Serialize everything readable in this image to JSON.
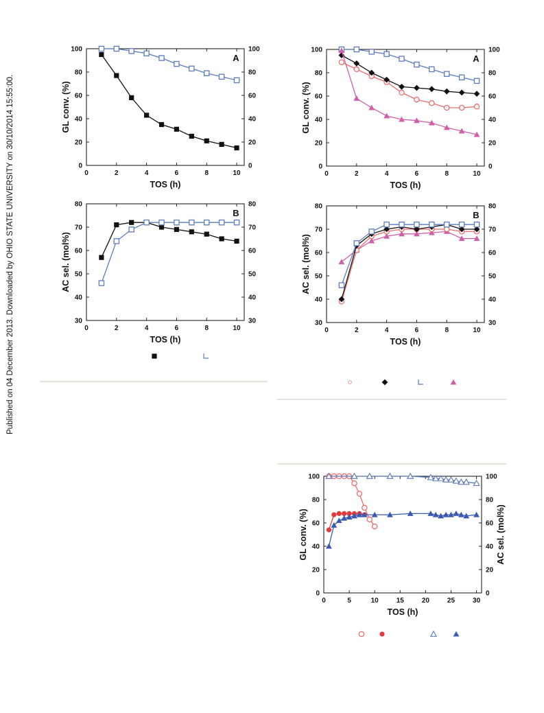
{
  "watermark": "Published on 04 December 2013. Downloaded by OHIO STATE UNIVERSITY on 30/10/2014 15:55:00.",
  "chart_data": [
    {
      "id": "fig-left-a",
      "type": "line",
      "panel_label": "A",
      "xlabel": "TOS (h)",
      "ylabel": "GL conv. (%)",
      "y2label": "",
      "xlim": [
        0,
        10.5
      ],
      "ylim": [
        0,
        100
      ],
      "y2lim": [
        0,
        100
      ],
      "xticks": [
        0,
        2,
        4,
        6,
        8,
        10
      ],
      "yticks": [
        0,
        20,
        40,
        60,
        80,
        100
      ],
      "y2ticks": [
        0,
        20,
        40,
        60,
        80,
        100
      ],
      "series": [
        {
          "axis": "left",
          "color": "#111111",
          "marker": "square-filled",
          "x": [
            1,
            2,
            3,
            4,
            5,
            6,
            7,
            8,
            9,
            10
          ],
          "y": [
            95,
            77,
            58,
            43,
            35,
            31,
            25,
            21,
            18,
            15
          ]
        },
        {
          "axis": "left",
          "color": "#5b7bbf",
          "marker": "square-open",
          "x": [
            1,
            2,
            3,
            4,
            5,
            6,
            7,
            8,
            9,
            10
          ],
          "y": [
            100,
            100,
            98,
            96,
            92,
            87,
            83,
            79,
            76,
            73
          ]
        }
      ]
    },
    {
      "id": "fig-left-b",
      "type": "line",
      "panel_label": "B",
      "xlabel": "TOS (h)",
      "ylabel": "AC sel. (mol%)",
      "y2label": "",
      "xlim": [
        0,
        10.5
      ],
      "ylim": [
        30,
        80
      ],
      "y2lim": [
        30,
        80
      ],
      "xticks": [
        0,
        2,
        4,
        6,
        8,
        10
      ],
      "yticks": [
        30,
        40,
        50,
        60,
        70,
        80
      ],
      "y2ticks": [
        30,
        40,
        50,
        60,
        70,
        80
      ],
      "series": [
        {
          "axis": "left",
          "color": "#111111",
          "marker": "square-filled",
          "x": [
            1,
            2,
            3,
            4,
            5,
            6,
            7,
            8,
            9,
            10
          ],
          "y": [
            57,
            71,
            72,
            72,
            70,
            69,
            68,
            67,
            65,
            64
          ]
        },
        {
          "axis": "left",
          "color": "#5b7bbf",
          "marker": "square-open",
          "x": [
            1,
            2,
            3,
            4,
            5,
            6,
            7,
            8,
            9,
            10
          ],
          "y": [
            46,
            64,
            69,
            72,
            72,
            72,
            72,
            72,
            72,
            72
          ]
        }
      ]
    },
    {
      "id": "fig-right-a",
      "type": "line",
      "panel_label": "A",
      "xlabel": "TOS (h)",
      "ylabel": "GL conv. (%)",
      "y2label": "",
      "xlim": [
        0,
        10.5
      ],
      "ylim": [
        0,
        100
      ],
      "y2lim": [
        0,
        100
      ],
      "xticks": [
        0,
        2,
        4,
        6,
        8,
        10
      ],
      "yticks": [
        0,
        20,
        40,
        60,
        80,
        100
      ],
      "y2ticks": [
        0,
        20,
        40,
        60,
        80,
        100
      ],
      "series": [
        {
          "axis": "left",
          "color": "#ee6b6b",
          "marker": "circle-open",
          "x": [
            1,
            2,
            3,
            4,
            5,
            6,
            7,
            8,
            9,
            10
          ],
          "y": [
            89,
            83,
            77,
            72,
            63,
            57,
            54,
            50,
            50,
            51
          ]
        },
        {
          "axis": "left",
          "color": "#111111",
          "marker": "diamond-filled",
          "x": [
            1,
            2,
            3,
            4,
            5,
            6,
            7,
            8,
            9,
            10
          ],
          "y": [
            95,
            88,
            80,
            74,
            68,
            67,
            66,
            64,
            63,
            62
          ]
        },
        {
          "axis": "left",
          "color": "#5b7bbf",
          "marker": "square-open",
          "x": [
            1,
            2,
            3,
            4,
            5,
            6,
            7,
            8,
            9,
            10
          ],
          "y": [
            100,
            100,
            98,
            96,
            92,
            87,
            83,
            79,
            76,
            73
          ]
        },
        {
          "axis": "left",
          "color": "#cf5fa8",
          "marker": "triangle-filled",
          "x": [
            1,
            2,
            3,
            4,
            5,
            6,
            7,
            8,
            9,
            10
          ],
          "y": [
            99,
            58,
            50,
            43,
            40,
            39,
            37,
            33,
            30,
            27
          ]
        }
      ]
    },
    {
      "id": "fig-right-b",
      "type": "line",
      "panel_label": "B",
      "xlabel": "TOS (h)",
      "ylabel": "AC sel. (mol%)",
      "y2label": "",
      "xlim": [
        0,
        10.5
      ],
      "ylim": [
        30,
        80
      ],
      "y2lim": [
        30,
        80
      ],
      "xticks": [
        0,
        2,
        4,
        6,
        8,
        10
      ],
      "yticks": [
        30,
        40,
        50,
        60,
        70,
        80
      ],
      "y2ticks": [
        30,
        40,
        50,
        60,
        70,
        80
      ],
      "series": [
        {
          "axis": "left",
          "color": "#cf5fa8",
          "marker": "triangle-filled",
          "x": [
            1,
            2,
            3,
            4,
            5,
            6,
            7,
            8,
            9,
            10
          ],
          "y": [
            56,
            61,
            65,
            67,
            68,
            68,
            68.5,
            69,
            66,
            66
          ]
        },
        {
          "axis": "left",
          "color": "#ee6b6b",
          "marker": "circle-open",
          "x": [
            1,
            2,
            3,
            4,
            5,
            6,
            7,
            8,
            9,
            10
          ],
          "y": [
            39,
            61,
            67,
            69,
            70,
            70,
            70,
            70,
            69,
            69
          ]
        },
        {
          "axis": "left",
          "color": "#111111",
          "marker": "diamond-filled",
          "x": [
            1,
            2,
            3,
            4,
            5,
            6,
            7,
            8,
            9,
            10
          ],
          "y": [
            40,
            63,
            68,
            70,
            71,
            70,
            71,
            72,
            70,
            70
          ]
        },
        {
          "axis": "left",
          "color": "#5b7bbf",
          "marker": "square-open",
          "x": [
            1,
            2,
            3,
            4,
            5,
            6,
            7,
            8,
            9,
            10
          ],
          "y": [
            46,
            64,
            69,
            72,
            72,
            72,
            72,
            72,
            72,
            72
          ]
        }
      ]
    },
    {
      "id": "fig-bottom",
      "type": "line",
      "panel_label": "",
      "xlabel": "TOS (h)",
      "ylabel": "GL conv. (%)",
      "y2label": "AC sel. (mol%)",
      "xlim": [
        0,
        31
      ],
      "ylim": [
        0,
        100
      ],
      "y2lim": [
        0,
        100
      ],
      "xticks": [
        0,
        5,
        10,
        15,
        20,
        25,
        30
      ],
      "yticks": [
        0,
        20,
        40,
        60,
        80,
        100
      ],
      "y2ticks": [
        0,
        20,
        40,
        60,
        80,
        100
      ],
      "series": [
        {
          "axis": "left",
          "color": "#ee6b6b",
          "marker": "circle-open",
          "x": [
            1,
            2,
            3,
            4,
            5,
            6,
            7,
            8,
            9,
            10
          ],
          "y": [
            100,
            100,
            100,
            100,
            100,
            94,
            85,
            73,
            63,
            57
          ]
        },
        {
          "axis": "right",
          "color": "#e03c3c",
          "marker": "circle-filled",
          "x": [
            1,
            2,
            3,
            4,
            5,
            6,
            7,
            8
          ],
          "y": [
            54,
            67,
            68,
            68,
            68,
            68,
            68,
            67
          ]
        },
        {
          "axis": "left",
          "color": "#5b7bbf",
          "marker": "triangle-open",
          "x": [
            1,
            6,
            9,
            13,
            17,
            21,
            22,
            23,
            24,
            25,
            26,
            27,
            28,
            30
          ],
          "y": [
            100,
            100,
            100,
            100,
            100,
            99,
            98,
            98,
            97,
            97,
            96,
            95,
            95,
            94
          ]
        },
        {
          "axis": "right",
          "color": "#3a59b0",
          "marker": "triangle-filled",
          "x": [
            1,
            2,
            3,
            4,
            5,
            6,
            7,
            8,
            10,
            13,
            17,
            21,
            22,
            23,
            24,
            25,
            26,
            27,
            28,
            30
          ],
          "y": [
            40,
            58,
            62,
            64,
            65,
            66,
            67,
            67,
            67,
            67,
            68,
            68,
            67,
            66,
            67,
            67,
            68,
            67,
            66,
            67
          ]
        }
      ]
    }
  ],
  "legends": {
    "left": [
      {
        "marker": "square-filled",
        "color": "#111111"
      },
      {
        "marker": "corner-open",
        "color": "#5b7bbf"
      }
    ],
    "right": [
      {
        "marker": "circle-open-small",
        "color": "#ee6b6b"
      },
      {
        "marker": "diamond-filled",
        "color": "#111111"
      },
      {
        "marker": "corner-open",
        "color": "#5b7bbf"
      },
      {
        "marker": "triangle-filled",
        "color": "#cf5fa8"
      }
    ],
    "bottom": [
      {
        "marker": "circle-open",
        "color": "#ee6b6b"
      },
      {
        "marker": "circle-filled",
        "color": "#e03c3c"
      },
      {
        "marker": "triangle-open",
        "color": "#5b7bbf"
      },
      {
        "marker": "triangle-filled",
        "color": "#3a59b0"
      }
    ]
  }
}
